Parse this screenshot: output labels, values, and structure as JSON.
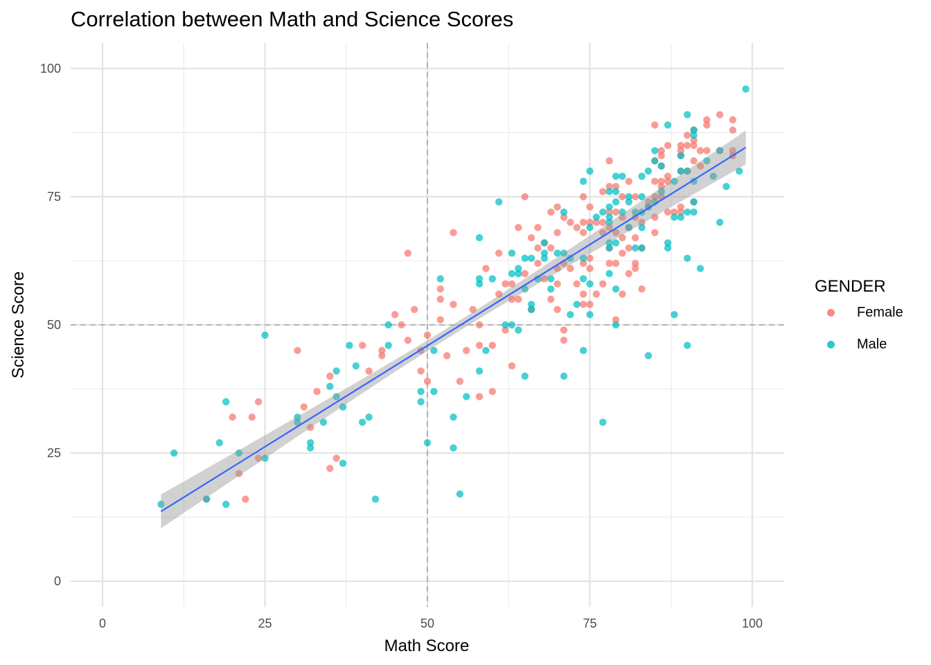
{
  "chart_data": {
    "type": "scatter",
    "title": "Correlation between Math and Science Scores",
    "xlabel": "Math Score",
    "ylabel": "Science Score",
    "xlim": [
      -5,
      105
    ],
    "ylim": [
      -5,
      105
    ],
    "x_ticks": [
      0,
      25,
      50,
      75,
      100
    ],
    "y_ticks": [
      0,
      25,
      50,
      75,
      100
    ],
    "grid": true,
    "legend": {
      "title": "GENDER",
      "position": "right"
    },
    "reference_lines": {
      "vertical_x": 50,
      "horizontal_y": 50,
      "style": "dashed",
      "color": "#b3b3b3"
    },
    "trend": {
      "type": "linear",
      "x_range": [
        9,
        99
      ],
      "y_at_start": 13.6,
      "y_at_end": 84.6,
      "ci_half_width_ends": 3.3,
      "ci_half_width_mid": 1.0,
      "color": "#3366ff",
      "band_color": "#999999"
    },
    "series": [
      {
        "name": "Female",
        "color": "#f8766d",
        "points": [
          [
            16,
            16
          ],
          [
            20,
            32
          ],
          [
            21,
            21
          ],
          [
            22,
            16
          ],
          [
            23,
            32
          ],
          [
            24,
            35
          ],
          [
            24,
            24
          ],
          [
            30,
            45
          ],
          [
            31,
            34
          ],
          [
            32,
            30
          ],
          [
            33,
            37
          ],
          [
            35,
            40
          ],
          [
            35,
            22
          ],
          [
            36,
            24
          ],
          [
            40,
            46
          ],
          [
            41,
            41
          ],
          [
            43,
            44
          ],
          [
            43,
            45
          ],
          [
            45,
            52
          ],
          [
            46,
            50
          ],
          [
            47,
            64
          ],
          [
            47,
            47
          ],
          [
            48,
            53
          ],
          [
            49,
            45
          ],
          [
            49,
            41
          ],
          [
            50,
            48
          ],
          [
            50,
            39
          ],
          [
            52,
            55
          ],
          [
            52,
            57
          ],
          [
            52,
            51
          ],
          [
            53,
            44
          ],
          [
            54,
            68
          ],
          [
            54,
            54
          ],
          [
            55,
            39
          ],
          [
            56,
            45
          ],
          [
            57,
            53
          ],
          [
            58,
            46
          ],
          [
            58,
            36
          ],
          [
            58,
            50
          ],
          [
            59,
            61
          ],
          [
            60,
            46
          ],
          [
            60,
            37
          ],
          [
            61,
            64
          ],
          [
            61,
            56
          ],
          [
            62,
            58
          ],
          [
            62,
            49
          ],
          [
            63,
            55
          ],
          [
            63,
            42
          ],
          [
            63,
            58
          ],
          [
            64,
            69
          ],
          [
            64,
            55
          ],
          [
            65,
            75
          ],
          [
            65,
            60
          ],
          [
            66,
            67
          ],
          [
            66,
            53
          ],
          [
            67,
            69
          ],
          [
            67,
            65
          ],
          [
            67,
            62
          ],
          [
            68,
            59
          ],
          [
            68,
            66
          ],
          [
            69,
            72
          ],
          [
            69,
            65
          ],
          [
            69,
            55
          ],
          [
            70,
            73
          ],
          [
            70,
            68
          ],
          [
            70,
            61
          ],
          [
            70,
            58
          ],
          [
            70,
            53
          ],
          [
            71,
            71
          ],
          [
            71,
            62
          ],
          [
            71,
            49
          ],
          [
            71,
            47
          ],
          [
            72,
            70
          ],
          [
            72,
            61
          ],
          [
            73,
            69
          ],
          [
            73,
            58
          ],
          [
            74,
            75
          ],
          [
            74,
            70
          ],
          [
            74,
            68
          ],
          [
            74,
            62
          ],
          [
            74,
            56
          ],
          [
            74,
            54
          ],
          [
            75,
            73
          ],
          [
            75,
            70
          ],
          [
            75,
            63
          ],
          [
            75,
            61
          ],
          [
            75,
            54
          ],
          [
            76,
            70
          ],
          [
            76,
            56
          ],
          [
            77,
            76
          ],
          [
            77,
            70
          ],
          [
            77,
            68
          ],
          [
            77,
            58
          ],
          [
            78,
            82
          ],
          [
            78,
            77
          ],
          [
            78,
            72
          ],
          [
            78,
            65
          ],
          [
            78,
            69
          ],
          [
            78,
            62
          ],
          [
            79,
            77
          ],
          [
            79,
            72
          ],
          [
            79,
            68
          ],
          [
            79,
            62
          ],
          [
            79,
            51
          ],
          [
            80,
            75
          ],
          [
            80,
            71
          ],
          [
            80,
            67
          ],
          [
            80,
            64
          ],
          [
            80,
            56
          ],
          [
            81,
            78
          ],
          [
            81,
            69
          ],
          [
            81,
            65
          ],
          [
            81,
            60
          ],
          [
            82,
            75
          ],
          [
            82,
            71
          ],
          [
            82,
            67
          ],
          [
            82,
            62
          ],
          [
            82,
            61
          ],
          [
            83,
            70
          ],
          [
            83,
            65
          ],
          [
            83,
            57
          ],
          [
            84,
            74
          ],
          [
            84,
            73
          ],
          [
            85,
            89
          ],
          [
            85,
            82
          ],
          [
            85,
            78
          ],
          [
            85,
            75
          ],
          [
            85,
            71
          ],
          [
            85,
            68
          ],
          [
            86,
            84
          ],
          [
            86,
            83
          ],
          [
            86,
            81
          ],
          [
            86,
            78
          ],
          [
            86,
            77
          ],
          [
            86,
            75
          ],
          [
            87,
            85
          ],
          [
            87,
            79
          ],
          [
            87,
            78
          ],
          [
            87,
            72
          ],
          [
            88,
            72
          ],
          [
            89,
            85
          ],
          [
            89,
            84
          ],
          [
            89,
            83
          ],
          [
            89,
            80
          ],
          [
            89,
            73
          ],
          [
            89,
            72
          ],
          [
            90,
            87
          ],
          [
            90,
            85
          ],
          [
            90,
            80
          ],
          [
            91,
            88
          ],
          [
            91,
            86
          ],
          [
            91,
            85
          ],
          [
            91,
            82
          ],
          [
            91,
            74
          ],
          [
            92,
            84
          ],
          [
            92,
            81
          ],
          [
            93,
            90
          ],
          [
            93,
            89
          ],
          [
            93,
            84
          ],
          [
            95,
            91
          ],
          [
            95,
            84
          ],
          [
            97,
            90
          ],
          [
            97,
            88
          ],
          [
            97,
            84
          ],
          [
            97,
            83
          ]
        ]
      },
      {
        "name": "Male",
        "color": "#00bfc4",
        "points": [
          [
            9,
            15
          ],
          [
            11,
            25
          ],
          [
            16,
            16
          ],
          [
            18,
            27
          ],
          [
            19,
            35
          ],
          [
            19,
            15
          ],
          [
            21,
            25
          ],
          [
            25,
            48
          ],
          [
            25,
            24
          ],
          [
            30,
            32
          ],
          [
            30,
            31
          ],
          [
            32,
            27
          ],
          [
            32,
            26
          ],
          [
            34,
            31
          ],
          [
            35,
            38
          ],
          [
            36,
            41
          ],
          [
            36,
            36
          ],
          [
            37,
            34
          ],
          [
            37,
            23
          ],
          [
            38,
            46
          ],
          [
            39,
            42
          ],
          [
            40,
            31
          ],
          [
            41,
            32
          ],
          [
            42,
            16
          ],
          [
            44,
            50
          ],
          [
            44,
            46
          ],
          [
            49,
            37
          ],
          [
            49,
            35
          ],
          [
            50,
            27
          ],
          [
            51,
            45
          ],
          [
            51,
            37
          ],
          [
            52,
            59
          ],
          [
            54,
            32
          ],
          [
            54,
            26
          ],
          [
            55,
            17
          ],
          [
            56,
            36
          ],
          [
            58,
            67
          ],
          [
            58,
            59
          ],
          [
            58,
            58
          ],
          [
            58,
            41
          ],
          [
            59,
            45
          ],
          [
            60,
            59
          ],
          [
            61,
            74
          ],
          [
            62,
            50
          ],
          [
            63,
            64
          ],
          [
            63,
            60
          ],
          [
            63,
            50
          ],
          [
            64,
            61
          ],
          [
            64,
            60
          ],
          [
            64,
            49
          ],
          [
            65,
            63
          ],
          [
            65,
            57
          ],
          [
            65,
            40
          ],
          [
            66,
            63
          ],
          [
            66,
            54
          ],
          [
            66,
            53
          ],
          [
            67,
            59
          ],
          [
            68,
            66
          ],
          [
            68,
            64
          ],
          [
            68,
            63
          ],
          [
            69,
            59
          ],
          [
            69,
            57
          ],
          [
            70,
            64
          ],
          [
            71,
            72
          ],
          [
            71,
            64
          ],
          [
            71,
            40
          ],
          [
            72,
            63
          ],
          [
            72,
            52
          ],
          [
            73,
            54
          ],
          [
            74,
            78
          ],
          [
            74,
            63
          ],
          [
            74,
            59
          ],
          [
            74,
            45
          ],
          [
            75,
            80
          ],
          [
            75,
            69
          ],
          [
            75,
            58
          ],
          [
            75,
            52
          ],
          [
            76,
            71
          ],
          [
            77,
            72
          ],
          [
            77,
            31
          ],
          [
            78,
            76
          ],
          [
            78,
            73
          ],
          [
            78,
            71
          ],
          [
            78,
            70
          ],
          [
            78,
            66
          ],
          [
            78,
            65
          ],
          [
            78,
            60
          ],
          [
            79,
            79
          ],
          [
            79,
            76
          ],
          [
            79,
            74
          ],
          [
            79,
            66
          ],
          [
            79,
            57
          ],
          [
            79,
            50
          ],
          [
            80,
            79
          ],
          [
            80,
            72
          ],
          [
            81,
            75
          ],
          [
            81,
            74
          ],
          [
            81,
            69
          ],
          [
            82,
            72
          ],
          [
            82,
            65
          ],
          [
            83,
            79
          ],
          [
            83,
            75
          ],
          [
            83,
            72
          ],
          [
            83,
            69
          ],
          [
            83,
            65
          ],
          [
            84,
            80
          ],
          [
            84,
            73
          ],
          [
            84,
            44
          ],
          [
            85,
            84
          ],
          [
            85,
            82
          ],
          [
            85,
            74
          ],
          [
            86,
            81
          ],
          [
            86,
            76
          ],
          [
            87,
            89
          ],
          [
            87,
            66
          ],
          [
            87,
            65
          ],
          [
            88,
            78
          ],
          [
            88,
            71
          ],
          [
            88,
            52
          ],
          [
            89,
            83
          ],
          [
            89,
            80
          ],
          [
            89,
            71
          ],
          [
            90,
            91
          ],
          [
            90,
            80
          ],
          [
            90,
            72
          ],
          [
            90,
            63
          ],
          [
            90,
            46
          ],
          [
            91,
            88
          ],
          [
            91,
            87
          ],
          [
            91,
            78
          ],
          [
            91,
            74
          ],
          [
            91,
            72
          ],
          [
            92,
            61
          ],
          [
            93,
            82
          ],
          [
            94,
            79
          ],
          [
            95,
            84
          ],
          [
            95,
            70
          ],
          [
            96,
            77
          ],
          [
            98,
            80
          ],
          [
            99,
            96
          ]
        ]
      }
    ]
  }
}
